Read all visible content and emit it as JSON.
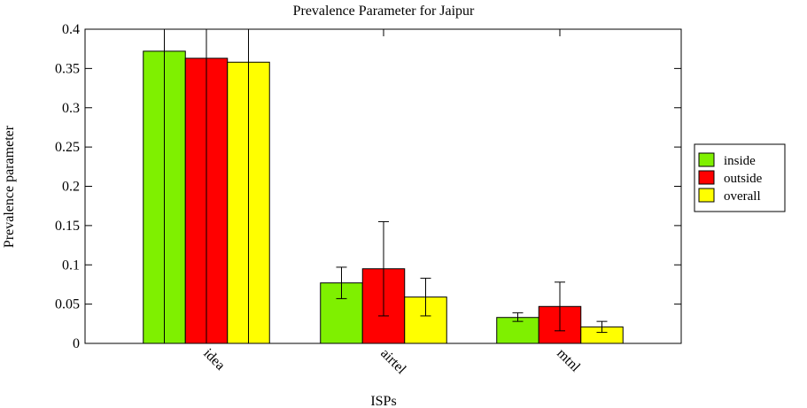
{
  "chart_data": {
    "type": "bar",
    "title": "Prevalence Parameter for Jaipur",
    "xlabel": "ISPs",
    "ylabel": "Prevalence parameter",
    "categories": [
      "idea",
      "airtel",
      "mtnl"
    ],
    "ylim": [
      0,
      0.4
    ],
    "yticks": [
      0,
      0.05,
      0.1,
      0.15,
      0.2,
      0.25,
      0.3,
      0.35,
      0.4
    ],
    "ytick_labels": [
      "0",
      "0.05",
      "0.1",
      "0.15",
      "0.2",
      "0.25",
      "0.3",
      "0.35",
      "0.4"
    ],
    "legend_position": "right",
    "series": [
      {
        "name": "inside",
        "color": "#7ff000",
        "values": [
          0.372,
          0.077,
          0.033
        ],
        "err_low": [
          0.0,
          0.057,
          0.028
        ],
        "err_high": [
          0.4,
          0.097,
          0.039
        ]
      },
      {
        "name": "outside",
        "color": "#ff0000",
        "values": [
          0.363,
          0.095,
          0.047
        ],
        "err_low": [
          0.0,
          0.035,
          0.016
        ],
        "err_high": [
          0.4,
          0.155,
          0.078
        ]
      },
      {
        "name": "overall",
        "color": "#ffff00",
        "values": [
          0.358,
          0.059,
          0.021
        ],
        "err_low": [
          0.0,
          0.035,
          0.014
        ],
        "err_high": [
          0.4,
          0.083,
          0.028
        ]
      }
    ]
  }
}
